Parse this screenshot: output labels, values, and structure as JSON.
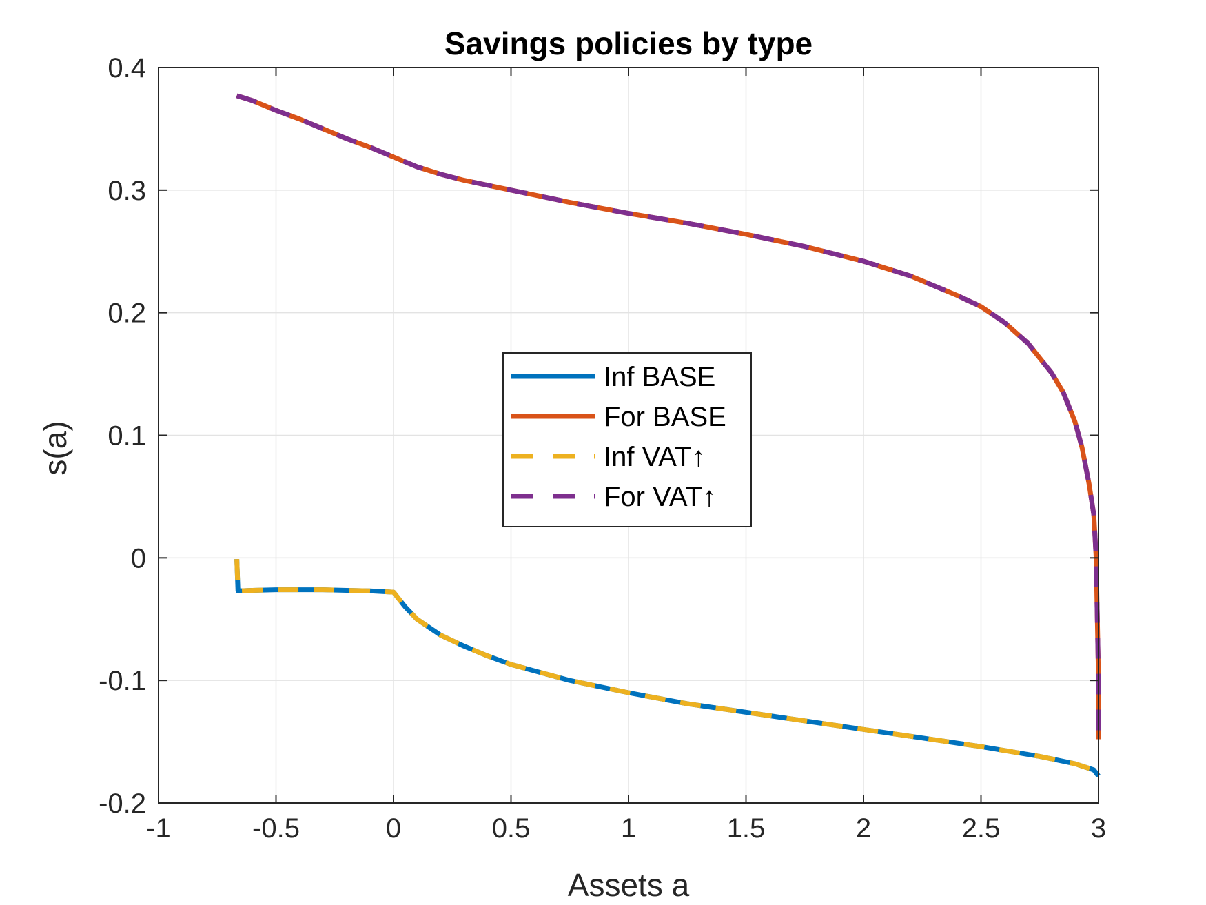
{
  "chart_data": {
    "type": "line",
    "title": "Savings policies by type",
    "xlabel": "Assets a",
    "ylabel": "s(a)",
    "xlim": [
      -1,
      3
    ],
    "ylim": [
      -0.2,
      0.4
    ],
    "xticks": [
      -1,
      -0.5,
      0,
      0.5,
      1,
      1.5,
      2,
      2.5,
      3
    ],
    "xtick_labels": [
      "-1",
      "-0.5",
      "0",
      "0.5",
      "1",
      "1.5",
      "2",
      "2.5",
      "3"
    ],
    "yticks": [
      -0.2,
      -0.1,
      0,
      0.1,
      0.2,
      0.3,
      0.4
    ],
    "ytick_labels": [
      "-0.2",
      "-0.1",
      "0",
      "0.1",
      "0.2",
      "0.3",
      "0.4"
    ],
    "grid": true,
    "legend_position": "center",
    "series": [
      {
        "name": "Inf BASE",
        "color": "#0072BD",
        "style": "solid",
        "x": [
          -0.667,
          -0.662,
          -0.6,
          -0.5,
          -0.4,
          -0.3,
          -0.2,
          -0.1,
          0.0,
          0.05,
          0.1,
          0.2,
          0.3,
          0.4,
          0.5,
          0.75,
          1.0,
          1.25,
          1.5,
          1.75,
          2.0,
          2.25,
          2.5,
          2.75,
          2.9,
          2.98,
          3.0
        ],
        "y": [
          -0.001,
          -0.027,
          -0.0265,
          -0.026,
          -0.026,
          -0.026,
          -0.0265,
          -0.027,
          -0.028,
          -0.04,
          -0.05,
          -0.063,
          -0.072,
          -0.08,
          -0.087,
          -0.1,
          -0.11,
          -0.119,
          -0.126,
          -0.133,
          -0.14,
          -0.147,
          -0.154,
          -0.162,
          -0.168,
          -0.173,
          -0.178
        ]
      },
      {
        "name": "For BASE",
        "color": "#D95319",
        "style": "solid",
        "x": [
          -0.667,
          -0.6,
          -0.5,
          -0.4,
          -0.3,
          -0.2,
          -0.1,
          0.0,
          0.1,
          0.2,
          0.3,
          0.5,
          0.75,
          1.0,
          1.25,
          1.5,
          1.75,
          2.0,
          2.2,
          2.4,
          2.5,
          2.6,
          2.7,
          2.8,
          2.85,
          2.9,
          2.93,
          2.96,
          2.98,
          2.99,
          3.0,
          3.0
        ],
        "y": [
          0.377,
          0.373,
          0.365,
          0.358,
          0.35,
          0.342,
          0.335,
          0.327,
          0.319,
          0.313,
          0.308,
          0.3,
          0.29,
          0.281,
          0.273,
          0.264,
          0.254,
          0.242,
          0.23,
          0.214,
          0.205,
          0.192,
          0.175,
          0.151,
          0.135,
          0.111,
          0.09,
          0.06,
          0.035,
          0.0,
          -0.1,
          -0.148
        ]
      },
      {
        "name": "Inf VAT↑",
        "color": "#EDB120",
        "style": "dashed",
        "x": [
          -0.667,
          -0.662,
          -0.6,
          -0.5,
          -0.4,
          -0.3,
          -0.2,
          -0.1,
          0.0,
          0.05,
          0.1,
          0.2,
          0.3,
          0.4,
          0.5,
          0.75,
          1.0,
          1.25,
          1.5,
          1.75,
          2.0,
          2.25,
          2.5,
          2.75,
          2.9,
          2.98,
          3.0
        ],
        "y": [
          -0.001,
          -0.027,
          -0.0265,
          -0.026,
          -0.026,
          -0.026,
          -0.0265,
          -0.027,
          -0.028,
          -0.04,
          -0.05,
          -0.063,
          -0.072,
          -0.08,
          -0.087,
          -0.1,
          -0.11,
          -0.119,
          -0.126,
          -0.133,
          -0.14,
          -0.147,
          -0.154,
          -0.162,
          -0.168,
          -0.173,
          -0.178
        ]
      },
      {
        "name": "For VAT↑",
        "color": "#7E2F8E",
        "style": "dashed",
        "x": [
          -0.667,
          -0.6,
          -0.5,
          -0.4,
          -0.3,
          -0.2,
          -0.1,
          0.0,
          0.1,
          0.2,
          0.3,
          0.5,
          0.75,
          1.0,
          1.25,
          1.5,
          1.75,
          2.0,
          2.2,
          2.4,
          2.5,
          2.6,
          2.7,
          2.8,
          2.85,
          2.9,
          2.93,
          2.96,
          2.98,
          2.99,
          3.0,
          3.0
        ],
        "y": [
          0.377,
          0.373,
          0.365,
          0.358,
          0.35,
          0.342,
          0.335,
          0.327,
          0.319,
          0.313,
          0.308,
          0.3,
          0.29,
          0.281,
          0.273,
          0.264,
          0.254,
          0.242,
          0.23,
          0.214,
          0.205,
          0.192,
          0.175,
          0.151,
          0.135,
          0.111,
          0.09,
          0.06,
          0.035,
          0.0,
          -0.1,
          -0.148
        ]
      }
    ]
  }
}
